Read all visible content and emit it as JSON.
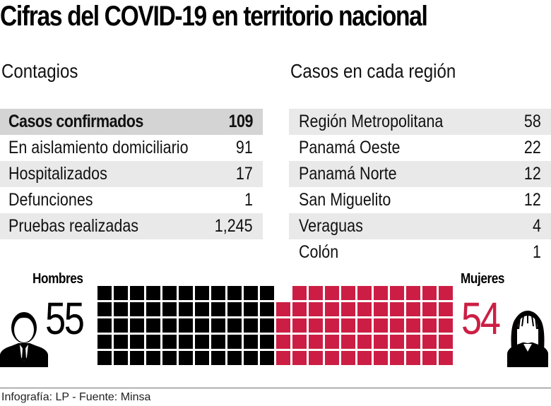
{
  "title": "Cifras del COVID-19 en territorio nacional",
  "contagios": {
    "heading": "Contagios",
    "rows": [
      {
        "label": "Casos confirmados",
        "value": "109"
      },
      {
        "label": "En aislamiento domiciliario",
        "value": "91"
      },
      {
        "label": "Hospitalizados",
        "value": "17"
      },
      {
        "label": "Defunciones",
        "value": "1"
      },
      {
        "label": "Pruebas realizadas",
        "value": "1,245"
      }
    ]
  },
  "regiones": {
    "heading": "Casos en cada región",
    "rows": [
      {
        "label": "Región Metropolitana",
        "value": "58"
      },
      {
        "label": "Panamá Oeste",
        "value": "22"
      },
      {
        "label": "Panamá Norte",
        "value": "12"
      },
      {
        "label": "San Miguelito",
        "value": "12"
      },
      {
        "label": "Veraguas",
        "value": "4"
      },
      {
        "label": "Colón",
        "value": "1"
      }
    ]
  },
  "genero": {
    "hombres_label": "Hombres",
    "hombres_value": "55",
    "mujeres_label": "Mujeres",
    "mujeres_value": "54",
    "icons": {
      "men": "man-icon",
      "women": "woman-icon"
    },
    "colors": {
      "hombres": "#000000",
      "mujeres": "#cc1e44"
    }
  },
  "footer": "Infografía: LP - Fuente: Minsa",
  "chart_data": [
    {
      "type": "table",
      "title": "Contagios",
      "categories": [
        "Casos confirmados",
        "En aislamiento domiciliario",
        "Hospitalizados",
        "Defunciones",
        "Pruebas realizadas"
      ],
      "values": [
        109,
        91,
        17,
        1,
        1245
      ]
    },
    {
      "type": "table",
      "title": "Casos en cada región",
      "categories": [
        "Región Metropolitana",
        "Panamá Oeste",
        "Panamá Norte",
        "San Miguelito",
        "Veraguas",
        "Colón"
      ],
      "values": [
        58,
        22,
        12,
        12,
        4,
        1
      ]
    },
    {
      "type": "waffle",
      "title": "Casos por sexo",
      "categories": [
        "Hombres",
        "Mujeres"
      ],
      "values": [
        55,
        54
      ],
      "colors": [
        "#000000",
        "#cc1e44"
      ],
      "grid": {
        "rows": 5,
        "columns": 22
      }
    }
  ]
}
